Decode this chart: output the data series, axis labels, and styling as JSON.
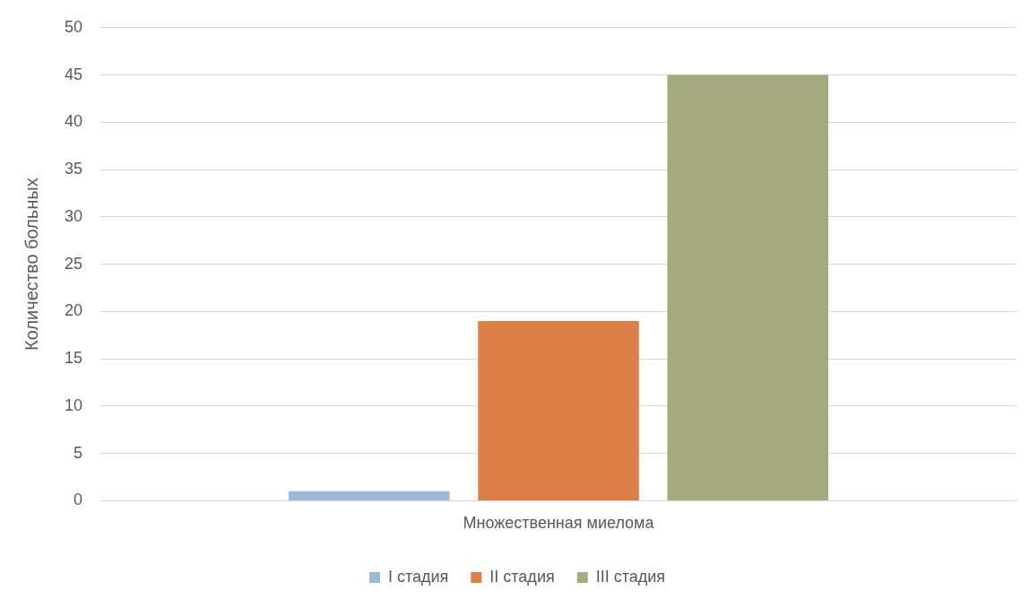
{
  "chart_data": {
    "type": "bar",
    "categories": [
      "Множественная миелома"
    ],
    "series": [
      {
        "name": "I стадия",
        "color": "#9bb7d9",
        "values": [
          1
        ]
      },
      {
        "name": "II стадия",
        "color": "#dd8047",
        "values": [
          19
        ]
      },
      {
        "name": "III стадия",
        "color": "#a5ab7e",
        "values": [
          45
        ]
      }
    ],
    "ylabel": "Количество больных",
    "ylim": [
      0,
      50
    ],
    "yticks": [
      0,
      5,
      10,
      15,
      20,
      25,
      30,
      35,
      40,
      45,
      50
    ],
    "grid": "y",
    "legend": "bottom"
  }
}
